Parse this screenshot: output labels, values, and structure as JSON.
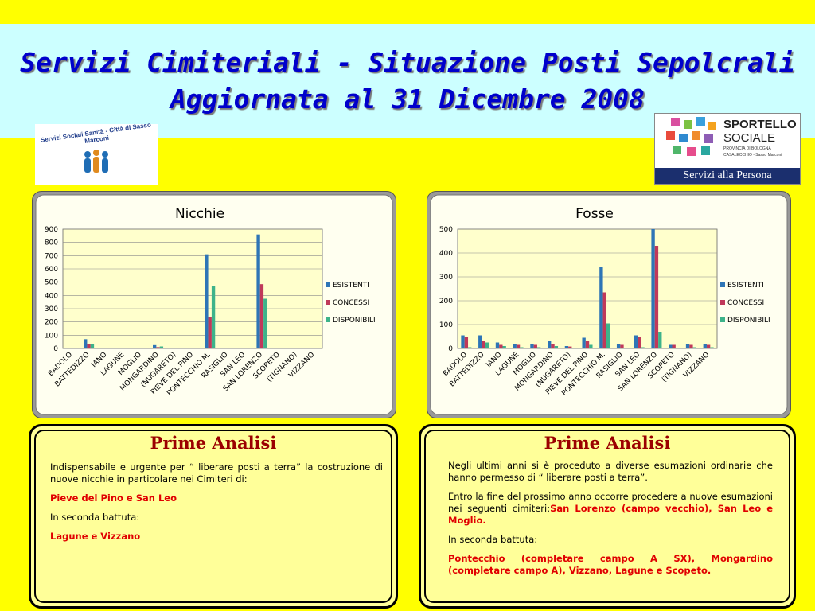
{
  "header": {
    "title_line1": "Servizi Cimiteriali - Situazione Posti Sepolcrali",
    "title_line2": "Aggiornata al 31 Dicembre 2008"
  },
  "logos": {
    "left_text": "Servizi Sociali Sanità - Città di Sasso Marconi",
    "right_brand1": "SPORTELLO",
    "right_brand2": "SOCIALE",
    "right_small1": "PROVINCIA DI BOLOGNA",
    "right_small2": "CASALECCHIO - Sasso Marconi",
    "right_bar": "Servizi alla Persona"
  },
  "colors": {
    "series": [
      "#2e75b6",
      "#c0395a",
      "#3db38a"
    ],
    "plot_bg": "#ffffcc",
    "title_blue": "#0000cc",
    "heading_red": "#9b0000"
  },
  "chart_data": [
    {
      "type": "bar",
      "title": "Nicchie",
      "categories": [
        "BADOLO",
        "BATTEDIZZO",
        "IANO",
        "LAGUNE",
        "MOGLIO",
        "MONGARDINO",
        "(NUGARETO)",
        "PIEVE DEL PINO",
        "PONTECCHIO M.",
        "RASIGLIO",
        "SAN LEO",
        "SAN LORENZO",
        "SCOPETO",
        "(TIGNANO)",
        "VIZZANO"
      ],
      "series": [
        {
          "name": "ESISTENTI",
          "values": [
            0,
            70,
            0,
            0,
            0,
            25,
            0,
            0,
            710,
            0,
            0,
            860,
            0,
            0,
            0
          ]
        },
        {
          "name": "CONCESSI",
          "values": [
            0,
            35,
            0,
            0,
            0,
            10,
            0,
            0,
            240,
            0,
            0,
            485,
            0,
            0,
            0
          ]
        },
        {
          "name": "DISPONIBILI",
          "values": [
            0,
            35,
            0,
            0,
            0,
            15,
            0,
            0,
            470,
            0,
            0,
            375,
            0,
            0,
            0
          ]
        }
      ],
      "ylim": [
        0,
        900
      ],
      "yticks": [
        "0",
        "100",
        "200",
        "300",
        "400",
        "500",
        "600",
        "700",
        "800",
        "900"
      ],
      "legend": "right",
      "grid": true
    },
    {
      "type": "bar",
      "title": "Fosse",
      "categories": [
        "BADOLO",
        "BATTEDIZZO",
        "IANO",
        "LAGUNE",
        "MOGLIO",
        "MONGARDINO",
        "(NUGARETO)",
        "PIEVE DEL PINO",
        "PONTECCHIO M.",
        "RASIGLIO",
        "SAN LEO",
        "SAN LORENZO",
        "SCOPETO",
        "(TIGNANO)",
        "VIZZANO"
      ],
      "series": [
        {
          "name": "ESISTENTI",
          "values": [
            55,
            55,
            25,
            20,
            20,
            30,
            10,
            45,
            340,
            18,
            55,
            500,
            15,
            20,
            20
          ]
        },
        {
          "name": "CONCESSI",
          "values": [
            50,
            30,
            15,
            15,
            15,
            20,
            8,
            30,
            235,
            15,
            50,
            430,
            15,
            15,
            15
          ]
        },
        {
          "name": "DISPONIBILI",
          "values": [
            5,
            25,
            10,
            5,
            5,
            10,
            2,
            15,
            105,
            3,
            5,
            70,
            0,
            5,
            5
          ]
        }
      ],
      "ylim": [
        0,
        500
      ],
      "yticks": [
        "0",
        "100",
        "200",
        "300",
        "400",
        "500"
      ],
      "legend": "right",
      "grid": true
    }
  ],
  "analysis_left": {
    "heading": "Prime Analisi",
    "p1": "Indispensabile e urgente per “ liberare posti a terra” la costruzione di nuove nicchie in particolare nei Cimiteri di:",
    "p2": "Pieve del Pino e San Leo",
    "p3": "In seconda battuta:",
    "p4": "Lagune e Vizzano"
  },
  "analysis_right": {
    "heading": "Prime Analisi",
    "p1": "Negli ultimi anni si è proceduto a diverse esumazioni ordinarie che hanno permesso di “ liberare posti a terra”.",
    "p2_text": "Entro la fine del prossimo anno occorre procedere a nuove esumazioni nei seguenti cimiteri:",
    "p2_red": "San Lorenzo (campo vecchio), San Leo e Moglio.",
    "p3": "In seconda battuta:",
    "p4": "Pontecchio (completare campo A SX), Mongardino (completare campo A), Vizzano, Lagune e Scopeto."
  }
}
